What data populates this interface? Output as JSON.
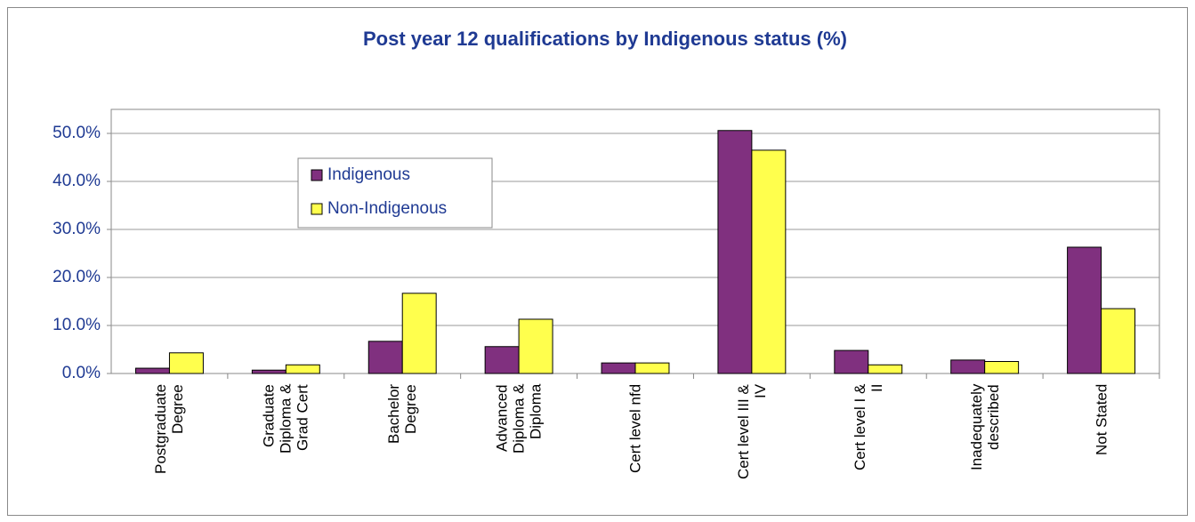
{
  "chart_data": {
    "type": "bar",
    "title": "Post year 12 qualifications by Indigenous status (%)",
    "categories": [
      "Postgraduate\nDegree",
      "Graduate\nDiploma &\nGrad Cert",
      "Bachelor\nDegree",
      "Advanced\nDiploma &\nDiploma",
      "Cert level nfd",
      "Cert level III &\nIV",
      "Cert level I &\nII",
      "Inadequately\ndescribed",
      "Not Stated"
    ],
    "series": [
      {
        "name": "Indigenous",
        "color": "#80307f",
        "values": [
          1.1,
          0.7,
          6.7,
          5.6,
          2.2,
          50.6,
          4.8,
          2.8,
          26.3
        ]
      },
      {
        "name": "Non-Indigenous",
        "color": "#ffff4d",
        "values": [
          4.3,
          1.8,
          16.7,
          11.3,
          2.2,
          46.5,
          1.8,
          2.5,
          13.5
        ]
      }
    ],
    "ylim": [
      0,
      55
    ],
    "yticks": [
      {
        "value": 0,
        "label": "0.0%"
      },
      {
        "value": 10,
        "label": "10.0%"
      },
      {
        "value": 20,
        "label": "20.0%"
      },
      {
        "value": 30,
        "label": "30.0%"
      },
      {
        "value": 40,
        "label": "40.0%"
      },
      {
        "value": 50,
        "label": "50.0%"
      }
    ],
    "grid": true,
    "legend": "upper left"
  }
}
